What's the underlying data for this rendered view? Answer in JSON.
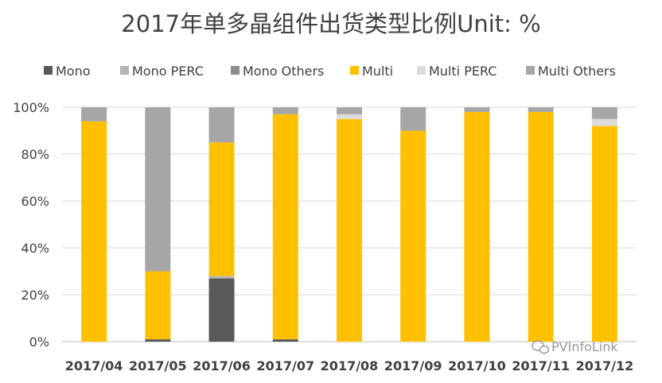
{
  "chart_data": {
    "type": "bar",
    "stacked": true,
    "normalized": true,
    "title": "2017年单多晶组件出货类型比例Unit: %",
    "xlabel": "",
    "ylabel": "",
    "ylim": [
      0,
      100
    ],
    "y_ticks": [
      "0%",
      "20%",
      "40%",
      "60%",
      "80%",
      "100%"
    ],
    "grid": "horizontal",
    "legend_position": "top",
    "categories": [
      "2017/04",
      "2017/05",
      "2017/06",
      "2017/07",
      "2017/08",
      "2017/09",
      "2017/10",
      "2017/11",
      "2017/12"
    ],
    "series": [
      {
        "name": "Mono",
        "color": "#595959",
        "values": [
          0,
          1,
          27,
          1,
          0,
          0,
          0,
          0,
          0
        ]
      },
      {
        "name": "Mono PERC",
        "color": "#b4b4b4",
        "values": [
          0,
          0,
          1,
          0,
          0,
          0,
          0,
          0,
          0
        ]
      },
      {
        "name": "Mono Others",
        "color": "#8c8c8c",
        "values": [
          0,
          0,
          0,
          0,
          0,
          0,
          0,
          0,
          0
        ]
      },
      {
        "name": "Multi",
        "color": "#ffc000",
        "values": [
          94,
          29,
          57,
          96,
          95,
          90,
          98,
          98,
          92
        ]
      },
      {
        "name": "Multi PERC",
        "color": "#dcdcdc",
        "values": [
          0,
          0,
          0,
          0,
          2,
          0,
          0,
          0,
          3
        ]
      },
      {
        "name": "Multi Others",
        "color": "#a6a6a6",
        "values": [
          6,
          70,
          15,
          3,
          3,
          10,
          2,
          2,
          5
        ]
      }
    ]
  },
  "watermark": {
    "text": "PVInfoLink",
    "icon": "wechat-icon"
  }
}
